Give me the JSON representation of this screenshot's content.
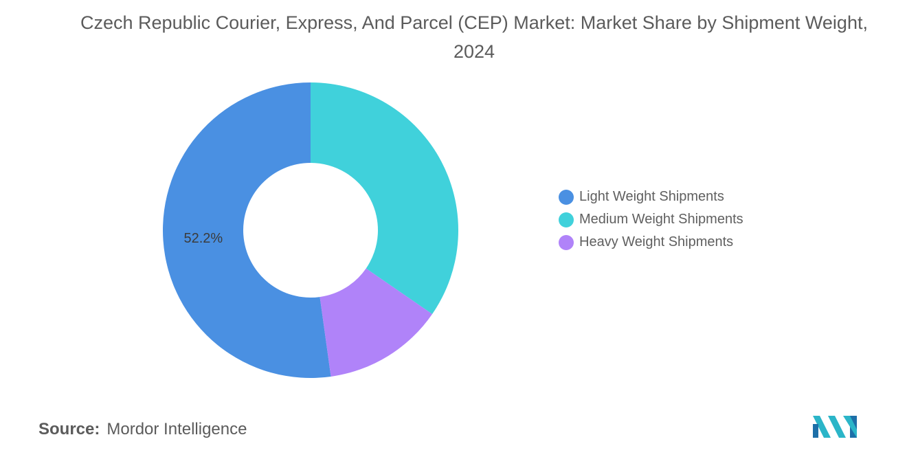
{
  "chart_data": {
    "type": "pie",
    "variant": "donut",
    "title": "Czech Republic Courier, Express, And Parcel (CEP) Market: Market Share by Shipment Weight, 2024",
    "categories": [
      "Light Weight Shipments",
      "Medium Weight Shipments",
      "Heavy Weight Shipments"
    ],
    "values": [
      52.2,
      34.6,
      13.2
    ],
    "colors": [
      "#4a90e2",
      "#40d1db",
      "#b083f9"
    ],
    "data_labels": [
      "52.2%",
      "",
      ""
    ],
    "legend_position": "right"
  },
  "source": {
    "prefix": "Source:",
    "text": "Mordor Intelligence"
  },
  "logo": {
    "name": "mordor-intelligence-logo",
    "colors": [
      "#2bb5c8",
      "#1d6fa8"
    ]
  }
}
